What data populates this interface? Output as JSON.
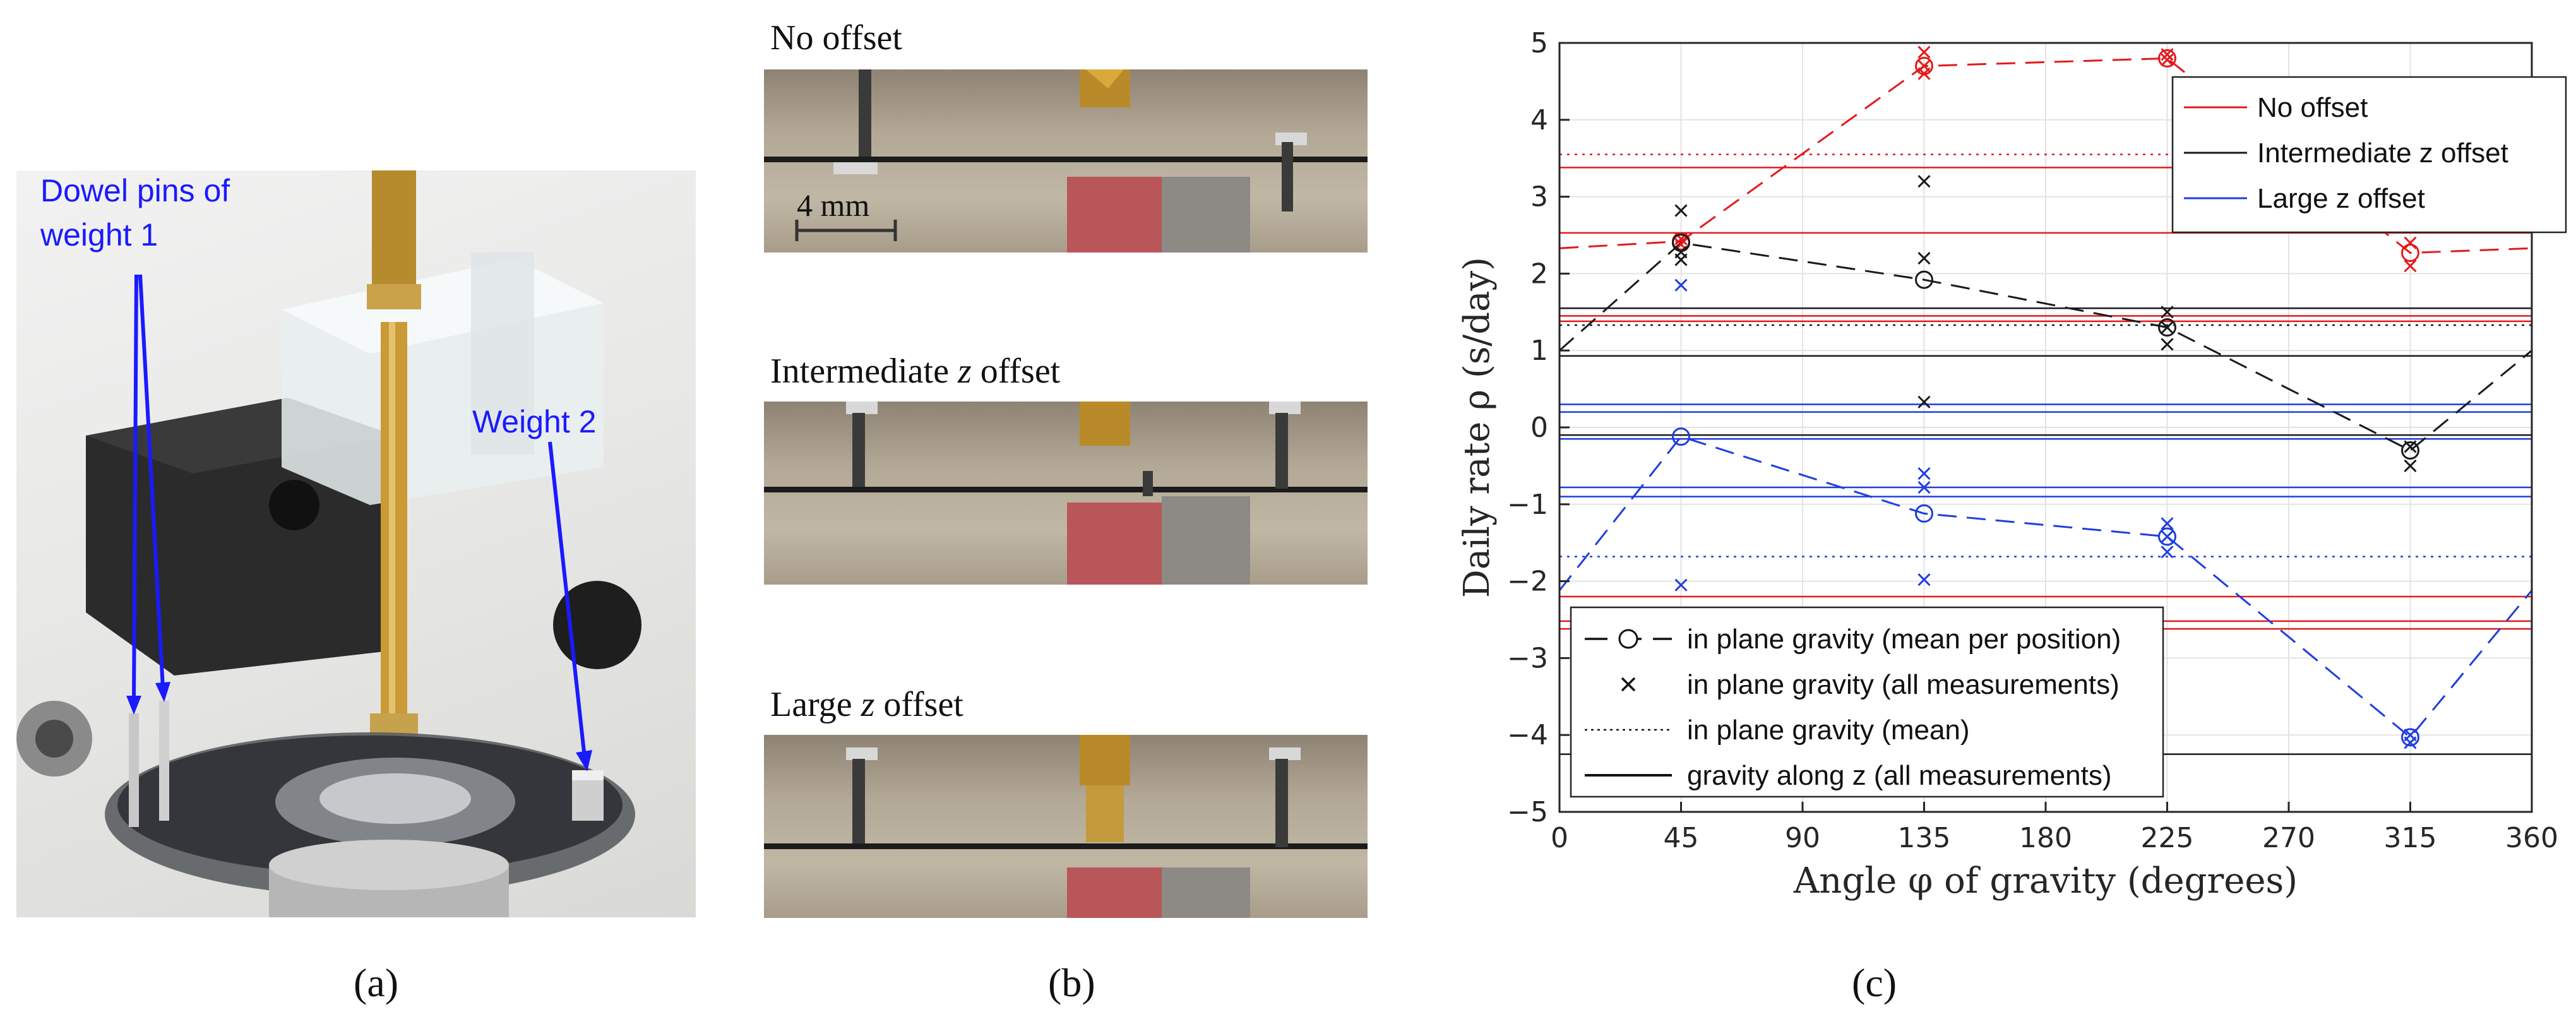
{
  "panel_a": {
    "annotations": {
      "dowel": [
        "Dowel pins of",
        "weight 1"
      ],
      "weight2": "Weight 2"
    },
    "annotation_color": "#1a1aff",
    "caption": "(a)"
  },
  "panel_b": {
    "strips": [
      {
        "label": "No offset"
      },
      {
        "label_pre": "Intermediate ",
        "label_var": "z",
        "label_post": " offset"
      },
      {
        "label_pre": "Large ",
        "label_var": "z",
        "label_post": " offset"
      }
    ],
    "scale_bar": "4 mm",
    "caption": "(b)"
  },
  "panel_c": {
    "caption": "(c)"
  },
  "chart_data": {
    "type": "line",
    "xlabel": "Angle φ of gravity (degrees)",
    "ylabel": "Daily rate ρ (s/day)",
    "xlim": [
      0,
      360
    ],
    "ylim": [
      -5,
      5
    ],
    "xticks": [
      0,
      45,
      90,
      135,
      180,
      225,
      270,
      315,
      360
    ],
    "yticks": [
      -5,
      -4,
      -3,
      -2,
      -1,
      0,
      1,
      2,
      3,
      4,
      5
    ],
    "grid": true,
    "colors": {
      "no_offset": "#e31a1c",
      "intermediate": "#1a1a1a",
      "large": "#1f3de0"
    },
    "legend_top": {
      "placement": "top-right",
      "entries": [
        "No offset",
        "Intermediate z offset",
        "Large z offset"
      ]
    },
    "legend_bottom": {
      "placement": "bottom-left",
      "entries": [
        "in plane gravity (mean per position)",
        "in plane gravity (all measurements)",
        "in plane gravity (mean)",
        "gravity along z (all measurements)"
      ]
    },
    "series": [
      {
        "name": "No offset",
        "color_key": "no_offset",
        "mean_per_position": {
          "x": [
            45,
            135,
            225,
            315
          ],
          "y": [
            2.42,
            4.7,
            4.8,
            2.27
          ]
        },
        "fit_curve_endpoints": [
          2.33,
          2.33
        ],
        "all_measurements": {
          "x": [
            45,
            45,
            135,
            135,
            135,
            225,
            225,
            315,
            315
          ],
          "y": [
            2.38,
            2.45,
            4.88,
            4.6,
            4.7,
            4.85,
            4.78,
            2.4,
            2.1
          ]
        },
        "in_plane_mean": 3.55,
        "gravity_along_z": [
          3.38,
          2.53,
          1.45,
          1.38,
          -2.2,
          -2.52,
          -2.62
        ]
      },
      {
        "name": "Intermediate z offset",
        "color_key": "intermediate",
        "mean_per_position": {
          "x": [
            45,
            135,
            225,
            315
          ],
          "y": [
            2.4,
            1.92,
            1.3,
            -0.3
          ]
        },
        "fit_curve_endpoints": [
          1.0,
          1.0
        ],
        "all_measurements": {
          "x": [
            45,
            45,
            45,
            135,
            135,
            135,
            225,
            225,
            225,
            315,
            315
          ],
          "y": [
            2.82,
            2.28,
            2.18,
            3.2,
            2.2,
            0.33,
            1.5,
            1.3,
            1.08,
            -0.25,
            -0.5
          ]
        },
        "in_plane_mean": 1.33,
        "gravity_along_z": [
          1.55,
          0.93,
          -0.1,
          -4.25
        ]
      },
      {
        "name": "Large z offset",
        "color_key": "large",
        "mean_per_position": {
          "x": [
            45,
            135,
            225,
            315
          ],
          "y": [
            -0.12,
            -1.12,
            -1.42,
            -4.03
          ]
        },
        "fit_curve_endpoints": [
          -2.12,
          -2.12
        ],
        "all_measurements": {
          "x": [
            45,
            45,
            135,
            135,
            135,
            225,
            225,
            225,
            315,
            315
          ],
          "y": [
            1.85,
            -2.05,
            -0.6,
            -0.78,
            -1.98,
            -1.25,
            -1.42,
            -1.62,
            -4.0,
            -4.1
          ]
        },
        "in_plane_mean": -1.68,
        "gravity_along_z": [
          0.3,
          0.2,
          -0.15,
          -0.78,
          -0.9
        ]
      }
    ]
  }
}
